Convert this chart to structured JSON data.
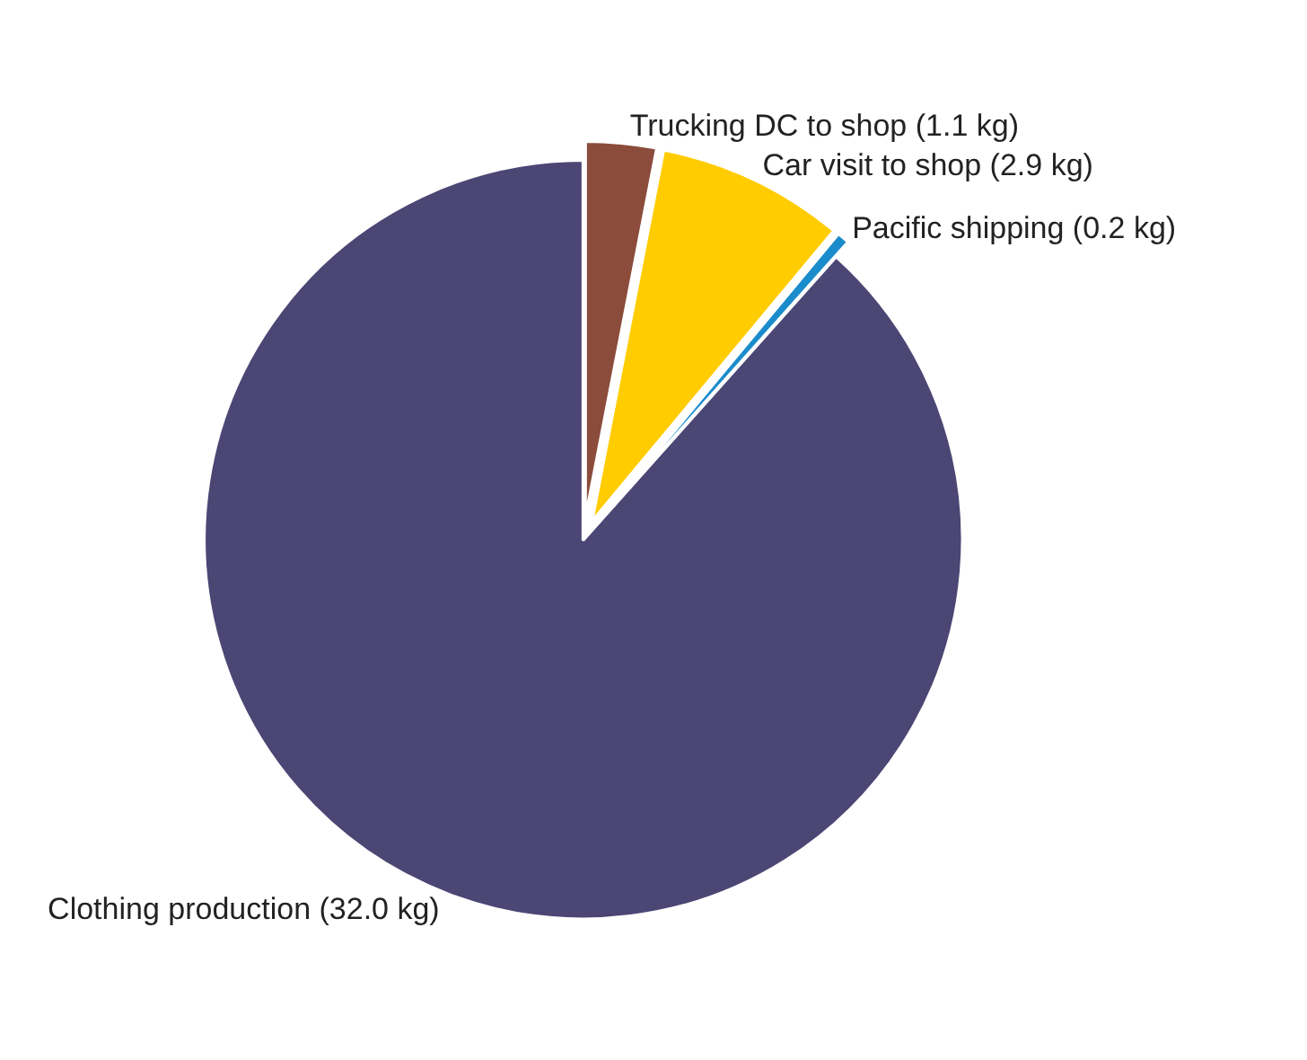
{
  "chart_data": {
    "type": "pie",
    "categories": [
      "Trucking DC to shop (1.1 kg)",
      "Car visit to shop (2.9 kg)",
      "Pacific shipping (0.2 kg)",
      "Clothing production (32.0 kg)"
    ],
    "values": [
      1.1,
      2.9,
      0.2,
      32.0
    ],
    "colors": [
      "#8b4c3b",
      "#ffcc00",
      "#1b8ccb",
      "#4b4674"
    ],
    "legend": false
  }
}
